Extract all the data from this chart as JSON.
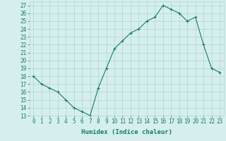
{
  "xlabel": "Humidex (Indice chaleur)",
  "x": [
    0,
    1,
    2,
    3,
    4,
    5,
    6,
    7,
    8,
    9,
    10,
    11,
    12,
    13,
    14,
    15,
    16,
    17,
    18,
    19,
    20,
    21,
    22,
    23
  ],
  "y": [
    18,
    17,
    16.5,
    16,
    15,
    14,
    13.5,
    13,
    16.5,
    19,
    21.5,
    22.5,
    23.5,
    24,
    25,
    25.5,
    27,
    26.5,
    26,
    25,
    25.5,
    22,
    19,
    18.5
  ],
  "line_color": "#1a7a6e",
  "marker": "+",
  "marker_size": 3,
  "marker_lw": 0.8,
  "bg_color": "#d5efee",
  "grid_color": "#b0d4cf",
  "tick_color": "#1a7a6e",
  "ylim": [
    13,
    27.5
  ],
  "xlim": [
    -0.5,
    23.5
  ],
  "yticks": [
    13,
    14,
    15,
    16,
    17,
    18,
    19,
    20,
    21,
    22,
    23,
    24,
    25,
    26,
    27
  ],
  "xticks": [
    0,
    1,
    2,
    3,
    4,
    5,
    6,
    7,
    8,
    9,
    10,
    11,
    12,
    13,
    14,
    15,
    16,
    17,
    18,
    19,
    20,
    21,
    22,
    23
  ],
  "xtick_labels": [
    "0",
    "1",
    "2",
    "3",
    "4",
    "5",
    "6",
    "7",
    "8",
    "9",
    "10",
    "11",
    "12",
    "13",
    "14",
    "15",
    "16",
    "17",
    "18",
    "19",
    "20",
    "21",
    "22",
    "23"
  ],
  "ytick_labels": [
    "13",
    "14",
    "15",
    "16",
    "17",
    "18",
    "19",
    "20",
    "21",
    "22",
    "23",
    "24",
    "25",
    "26",
    "27"
  ],
  "label_fontsize": 6.5,
  "tick_fontsize": 5.5
}
